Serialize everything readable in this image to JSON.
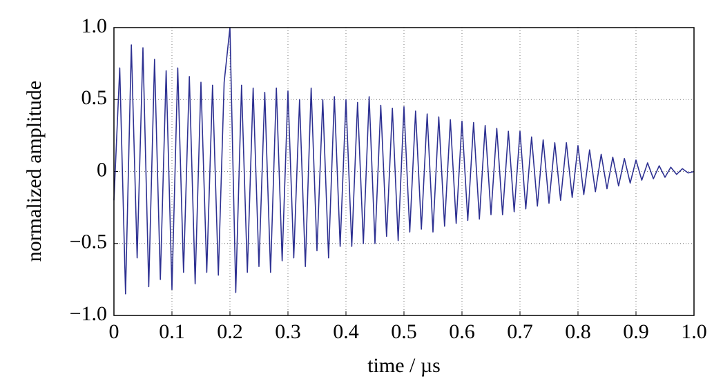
{
  "chart_data": {
    "type": "line",
    "xlabel": "time / µs",
    "ylabel": "normalized amplitude",
    "x": [
      0,
      0.01,
      0.02,
      0.03,
      0.04,
      0.05,
      0.06,
      0.07,
      0.08,
      0.09,
      0.1,
      0.11,
      0.12,
      0.13,
      0.14,
      0.15,
      0.16,
      0.17,
      0.18,
      0.19,
      0.2,
      0.21,
      0.22,
      0.23,
      0.24,
      0.25,
      0.26,
      0.27,
      0.28,
      0.29,
      0.3,
      0.31,
      0.32,
      0.33,
      0.34,
      0.35,
      0.36,
      0.37,
      0.38,
      0.39,
      0.4,
      0.41,
      0.42,
      0.43,
      0.44,
      0.45,
      0.46,
      0.47,
      0.48,
      0.49,
      0.5,
      0.51,
      0.52,
      0.53,
      0.54,
      0.55,
      0.56,
      0.57,
      0.58,
      0.59,
      0.6,
      0.61,
      0.62,
      0.63,
      0.64,
      0.65,
      0.66,
      0.67,
      0.68,
      0.69,
      0.7,
      0.71,
      0.72,
      0.73,
      0.74,
      0.75,
      0.76,
      0.77,
      0.78,
      0.79,
      0.8,
      0.81,
      0.82,
      0.83,
      0.84,
      0.85,
      0.86,
      0.87,
      0.88,
      0.89,
      0.9,
      0.91,
      0.92,
      0.93,
      0.94,
      0.95,
      0.96,
      0.97,
      0.98,
      0.99,
      1
    ],
    "series": [
      {
        "color": "#2e3192",
        "values": [
          -0.2,
          0.72,
          -0.85,
          0.88,
          -0.6,
          0.86,
          -0.8,
          0.78,
          -0.75,
          0.7,
          -0.82,
          0.72,
          -0.7,
          0.66,
          -0.78,
          0.62,
          -0.7,
          0.6,
          -0.72,
          0.62,
          1.0,
          -0.84,
          0.6,
          -0.7,
          0.58,
          -0.66,
          0.55,
          -0.7,
          0.58,
          -0.62,
          0.56,
          -0.6,
          0.5,
          -0.66,
          0.58,
          -0.55,
          0.5,
          -0.6,
          0.52,
          -0.52,
          0.5,
          -0.52,
          0.48,
          -0.5,
          0.52,
          -0.5,
          0.46,
          -0.45,
          0.44,
          -0.48,
          0.45,
          -0.42,
          0.42,
          -0.4,
          0.4,
          -0.42,
          0.38,
          -0.38,
          0.36,
          -0.36,
          0.35,
          -0.34,
          0.34,
          -0.33,
          0.32,
          -0.3,
          0.3,
          -0.3,
          0.28,
          -0.28,
          0.28,
          -0.26,
          0.24,
          -0.24,
          0.22,
          -0.22,
          0.2,
          -0.2,
          0.2,
          -0.18,
          0.18,
          -0.16,
          0.15,
          -0.14,
          0.12,
          -0.12,
          0.1,
          -0.1,
          0.09,
          -0.08,
          0.08,
          -0.06,
          0.06,
          -0.05,
          0.04,
          -0.04,
          0.03,
          -0.02,
          0.02,
          -0.01,
          0
        ]
      }
    ],
    "xlim": [
      0,
      1
    ],
    "ylim": [
      -1,
      1
    ],
    "xticks": [
      0,
      0.1,
      0.2,
      0.3,
      0.4,
      0.5,
      0.6,
      0.7,
      0.8,
      0.9,
      {
        "value": 1,
        "label": "1.0"
      }
    ],
    "yticks": [
      {
        "value": -1,
        "label": "−1.0"
      },
      {
        "value": -0.5,
        "label": "−0.5"
      },
      0,
      0.5,
      {
        "value": 1,
        "label": "1.0"
      }
    ],
    "grid": true
  }
}
